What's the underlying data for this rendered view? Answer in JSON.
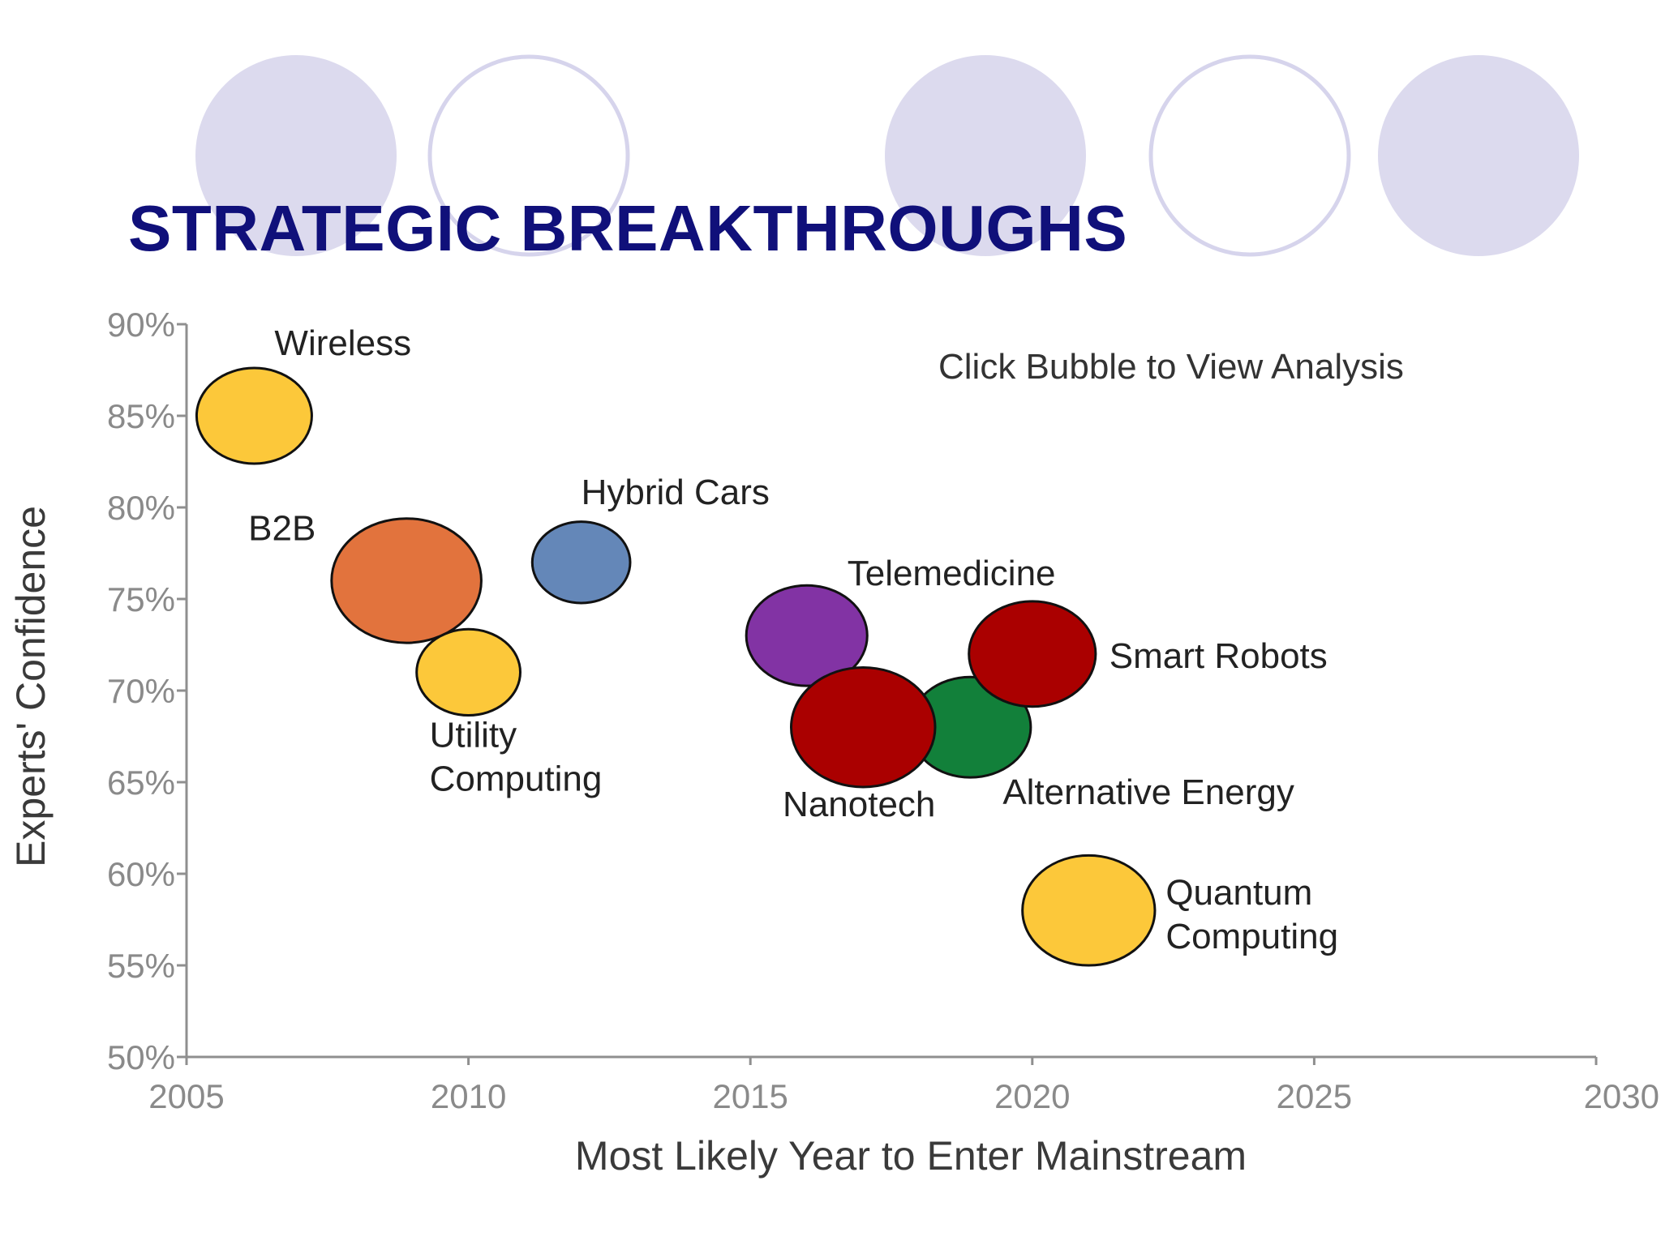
{
  "slide": {
    "title": "STRATEGIC BREAKTHROUGHS"
  },
  "chart_data": {
    "type": "scatter",
    "title": "",
    "annotation": "Click Bubble to View Analysis",
    "xlabel": "Most Likely Year to Enter Mainstream",
    "ylabel": "Experts' Confidence",
    "xlim": [
      2005,
      2030
    ],
    "ylim": [
      50,
      90
    ],
    "x_ticks": [
      "2005",
      "2010",
      "2015",
      "2020",
      "2025",
      "2030"
    ],
    "y_ticks": [
      "50%",
      "55%",
      "60%",
      "65%",
      "70%",
      "75%",
      "80%",
      "85%",
      "90%"
    ],
    "grid": false,
    "legend": "none",
    "points": [
      {
        "name": "Wireless",
        "lines": [
          "Wireless"
        ],
        "x": 2006.2,
        "y": 85.0,
        "size": 1.0,
        "color": "#fcc83a"
      },
      {
        "name": "B2B",
        "lines": [
          "B2B"
        ],
        "x": 2008.9,
        "y": 76.0,
        "size": 1.3,
        "color": "#e2733d"
      },
      {
        "name": "Hybrid Cars",
        "lines": [
          "Hybrid Cars"
        ],
        "x": 2012.0,
        "y": 77.0,
        "size": 0.85,
        "color": "#6487b8"
      },
      {
        "name": "Utility Computing",
        "lines": [
          "Utility",
          "Computing"
        ],
        "x": 2010.0,
        "y": 71.0,
        "size": 0.9,
        "color": "#fcc83a"
      },
      {
        "name": "Telemedicine",
        "lines": [
          "Telemedicine"
        ],
        "x": 2016.0,
        "y": 73.0,
        "size": 1.05,
        "color": "#8233a4"
      },
      {
        "name": "Alternative Energy",
        "lines": [
          "Alternative Energy"
        ],
        "x": 2018.9,
        "y": 68.0,
        "size": 1.05,
        "color": "#12803a"
      },
      {
        "name": "Nanotech",
        "lines": [
          "Nanotech"
        ],
        "x": 2017.0,
        "y": 68.0,
        "size": 1.25,
        "color": "#aa0000"
      },
      {
        "name": "Smart Robots",
        "lines": [
          "Smart Robots"
        ],
        "x": 2020.0,
        "y": 72.0,
        "size": 1.1,
        "color": "#aa0000"
      },
      {
        "name": "Quantum Computing",
        "lines": [
          "Quantum",
          "Computing"
        ],
        "x": 2021.0,
        "y": 58.0,
        "size": 1.15,
        "color": "#fcc83a"
      }
    ]
  }
}
